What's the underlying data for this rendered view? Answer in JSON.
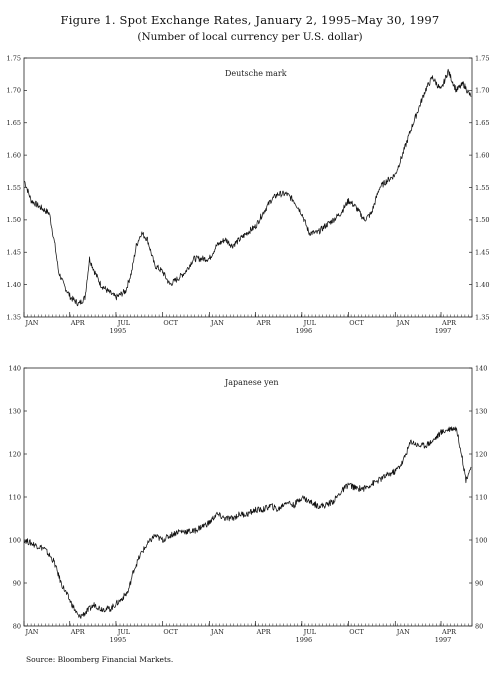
{
  "title": "Figure 1. Spot Exchange Rates, January 2, 1995–May 30, 1997",
  "subtitle": "(Number of local currency per U.S. dollar)",
  "source": "Source: Bloomberg Financial Markets.",
  "chart_data": [
    {
      "type": "line",
      "series_label": "Deutsche mark",
      "ylim": [
        1.35,
        1.75
      ],
      "yticks": [
        "1.35",
        "1.40",
        "1.45",
        "1.50",
        "1.55",
        "1.60",
        "1.65",
        "1.70",
        "1.75"
      ],
      "xlim": [
        "1995-01-01",
        "1997-06-01"
      ],
      "month_ticks": [
        "JAN",
        "APR",
        "JUL",
        "OCT",
        "JAN",
        "APR",
        "JUL",
        "OCT",
        "JAN",
        "APR"
      ],
      "year_ticks": [
        "1995",
        "1996",
        "1997"
      ],
      "series": [
        {
          "name": "Deutsche mark",
          "x": [
            "1995-01-02",
            "1995-01-15",
            "1995-02-01",
            "1995-02-20",
            "1995-03-03",
            "1995-03-10",
            "1995-03-20",
            "1995-04-03",
            "1995-04-19",
            "1995-05-01",
            "1995-05-10",
            "1995-05-20",
            "1995-06-01",
            "1995-06-15",
            "1995-07-01",
            "1995-07-20",
            "1995-08-01",
            "1995-08-10",
            "1995-08-20",
            "1995-09-01",
            "1995-09-15",
            "1995-10-01",
            "1995-10-15",
            "1995-11-01",
            "1995-11-15",
            "1995-12-01",
            "1995-12-15",
            "1996-01-01",
            "1996-01-15",
            "1996-02-01",
            "1996-02-15",
            "1996-03-01",
            "1996-03-15",
            "1996-04-01",
            "1996-04-15",
            "1996-05-01",
            "1996-05-15",
            "1996-06-01",
            "1996-06-15",
            "1996-07-01",
            "1996-07-15",
            "1996-08-01",
            "1996-08-15",
            "1996-09-01",
            "1996-09-15",
            "1996-10-01",
            "1996-10-15",
            "1996-11-01",
            "1996-11-15",
            "1996-12-01",
            "1996-12-15",
            "1997-01-01",
            "1997-01-15",
            "1997-02-01",
            "1997-02-15",
            "1997-03-01",
            "1997-03-15",
            "1997-04-01",
            "1997-04-15",
            "1997-05-01",
            "1997-05-15",
            "1997-05-30"
          ],
          "values": [
            1.56,
            1.53,
            1.52,
            1.51,
            1.46,
            1.42,
            1.4,
            1.38,
            1.37,
            1.38,
            1.44,
            1.42,
            1.4,
            1.39,
            1.38,
            1.39,
            1.42,
            1.46,
            1.48,
            1.47,
            1.43,
            1.42,
            1.4,
            1.41,
            1.42,
            1.44,
            1.44,
            1.44,
            1.46,
            1.47,
            1.46,
            1.47,
            1.48,
            1.49,
            1.51,
            1.53,
            1.54,
            1.54,
            1.53,
            1.51,
            1.48,
            1.48,
            1.49,
            1.5,
            1.51,
            1.53,
            1.52,
            1.5,
            1.51,
            1.55,
            1.56,
            1.57,
            1.6,
            1.64,
            1.67,
            1.7,
            1.72,
            1.7,
            1.73,
            1.7,
            1.71,
            1.69
          ]
        }
      ]
    },
    {
      "type": "line",
      "series_label": "Japanese yen",
      "ylim": [
        80,
        140
      ],
      "yticks": [
        "80",
        "90",
        "100",
        "110",
        "120",
        "130",
        "140"
      ],
      "xlim": [
        "1995-01-01",
        "1997-06-01"
      ],
      "month_ticks": [
        "JAN",
        "APR",
        "JUL",
        "OCT",
        "JAN",
        "APR",
        "JUL",
        "OCT",
        "JAN",
        "APR"
      ],
      "year_ticks": [
        "1995",
        "1996",
        "1997"
      ],
      "series": [
        {
          "name": "Japanese yen",
          "x": [
            "1995-01-02",
            "1995-01-20",
            "1995-02-10",
            "1995-03-01",
            "1995-03-15",
            "1995-04-01",
            "1995-04-19",
            "1995-05-01",
            "1995-05-20",
            "1995-06-01",
            "1995-06-20",
            "1995-07-10",
            "1995-07-25",
            "1995-08-05",
            "1995-08-20",
            "1995-09-01",
            "1995-09-15",
            "1995-10-01",
            "1995-10-15",
            "1995-11-01",
            "1995-11-15",
            "1995-12-01",
            "1995-12-15",
            "1996-01-01",
            "1996-01-15",
            "1996-02-01",
            "1996-02-15",
            "1996-03-01",
            "1996-03-15",
            "1996-04-01",
            "1996-04-15",
            "1996-05-01",
            "1996-05-15",
            "1996-06-01",
            "1996-06-15",
            "1996-07-01",
            "1996-07-15",
            "1996-08-01",
            "1996-08-15",
            "1996-09-01",
            "1996-09-15",
            "1996-10-01",
            "1996-10-15",
            "1996-11-01",
            "1996-11-15",
            "1996-12-01",
            "1996-12-15",
            "1997-01-01",
            "1997-01-15",
            "1997-02-01",
            "1997-02-15",
            "1997-03-01",
            "1997-03-15",
            "1997-04-01",
            "1997-04-20",
            "1997-05-01",
            "1997-05-10",
            "1997-05-20",
            "1997-05-30"
          ],
          "values": [
            100,
            99,
            98,
            95,
            90,
            86,
            82,
            83,
            85,
            84,
            84,
            86,
            88,
            93,
            97,
            99,
            101,
            100,
            101,
            102,
            102,
            102,
            103,
            104,
            106,
            105,
            105,
            106,
            106,
            107,
            107,
            108,
            107,
            109,
            108,
            110,
            109,
            108,
            108,
            109,
            111,
            113,
            112,
            112,
            113,
            114,
            115,
            116,
            118,
            123,
            122,
            122,
            123,
            125,
            126,
            126,
            121,
            114,
            117
          ]
        }
      ]
    }
  ]
}
